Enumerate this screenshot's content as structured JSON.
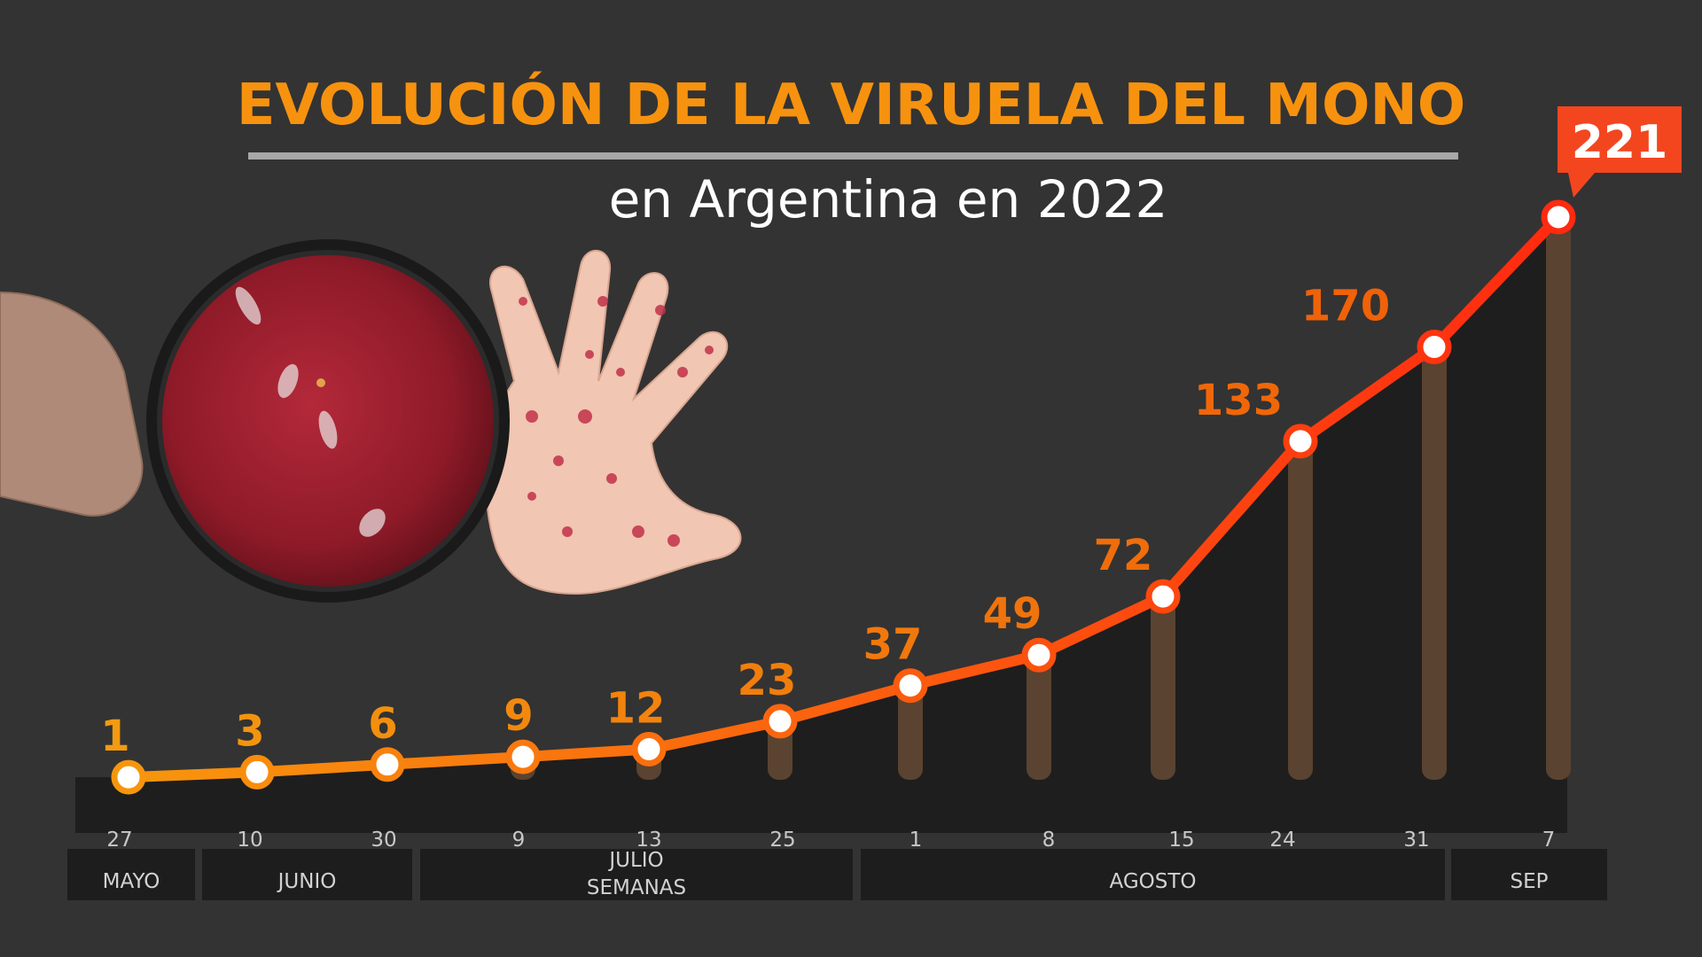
{
  "title": "EVOLUCIÓN DE LA VIRUELA DEL MONO",
  "subtitle": "en Argentina en 2022",
  "colors": {
    "background": "#333333",
    "title": "#f7920f",
    "subtitle": "#ffffff",
    "rule": "#a8a8a8",
    "line_start": "#f7960d",
    "line_end": "#ff2a10",
    "label_start": "#f39a10",
    "label_end": "#ef5c08",
    "last_label_box": "#f3461f",
    "marker_fill": "#ffffff",
    "area": "#1e1e1e",
    "bar": "#5a4330",
    "tick_text": "#c8c8c8",
    "month_box": "#1d1d1d",
    "month_text": "#d2d2d2"
  },
  "chart_data": {
    "type": "line",
    "title": "EVOLUCIÓN DE LA VIRUELA DEL MONO",
    "subtitle": "en Argentina en 2022",
    "xlabel": "SEMANAS",
    "ylabel": "",
    "categories": [
      "27",
      "10",
      "30",
      "9",
      "13",
      "25",
      "1",
      "8",
      "15",
      "24",
      "31",
      "7"
    ],
    "values": [
      1,
      3,
      6,
      9,
      12,
      23,
      37,
      49,
      72,
      133,
      170,
      221
    ],
    "ylim": [
      0,
      221
    ],
    "grid": false,
    "legend": "none",
    "months": [
      {
        "label": "MAYO",
        "from": 0,
        "to": 0
      },
      {
        "label": "JUNIO",
        "from": 1,
        "to": 2
      },
      {
        "label": "JULIO",
        "from": 3,
        "to": 5
      },
      {
        "label": "AGOSTO",
        "from": 6,
        "to": 10
      },
      {
        "label": "SEP",
        "from": 11,
        "to": 11
      }
    ],
    "highlight_last": true
  }
}
